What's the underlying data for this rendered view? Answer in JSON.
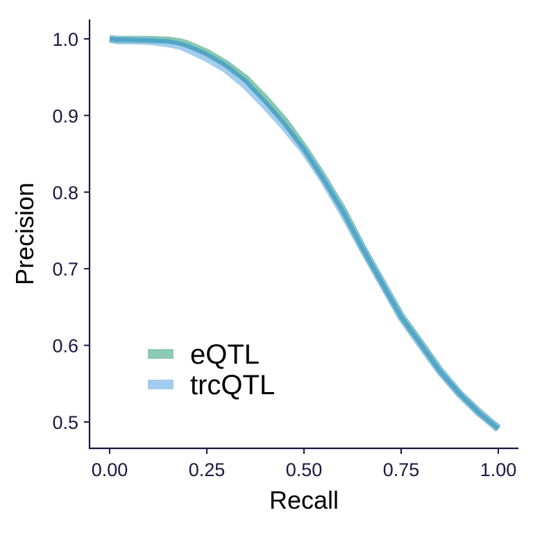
{
  "chart_data": {
    "type": "line",
    "xlabel": "Recall",
    "ylabel": "Precision",
    "xlim": [
      0,
      1
    ],
    "ylim": [
      0.467,
      1.027
    ],
    "xticks": [
      "0.00",
      "0.25",
      "0.50",
      "0.75",
      "1.00"
    ],
    "yticks": [
      "0.5",
      "0.6",
      "0.7",
      "0.8",
      "0.9",
      "1.0"
    ],
    "grid": false,
    "legend_position": "bottom-left",
    "series": [
      {
        "name": "eQTL",
        "color": "#66b899",
        "x": [
          0.0,
          0.02,
          0.05,
          0.1,
          0.15,
          0.18,
          0.2,
          0.25,
          0.3,
          0.35,
          0.4,
          0.45,
          0.5,
          0.55,
          0.6,
          0.65,
          0.7,
          0.75,
          0.8,
          0.85,
          0.9,
          0.95,
          1.0
        ],
        "y": [
          1.0,
          0.999,
          0.999,
          0.999,
          0.998,
          0.996,
          0.993,
          0.982,
          0.967,
          0.948,
          0.922,
          0.893,
          0.858,
          0.819,
          0.777,
          0.728,
          0.683,
          0.638,
          0.603,
          0.567,
          0.537,
          0.513,
          0.491
        ]
      },
      {
        "name": "trcQTL",
        "color": "#82bbe8",
        "x": [
          0.0,
          0.02,
          0.05,
          0.1,
          0.15,
          0.18,
          0.2,
          0.25,
          0.3,
          0.35,
          0.4,
          0.45,
          0.5,
          0.55,
          0.6,
          0.65,
          0.7,
          0.75,
          0.8,
          0.85,
          0.9,
          0.95,
          1.0
        ],
        "y": [
          1.0,
          0.998,
          0.998,
          0.997,
          0.994,
          0.991,
          0.987,
          0.975,
          0.96,
          0.939,
          0.913,
          0.885,
          0.854,
          0.816,
          0.773,
          0.727,
          0.682,
          0.637,
          0.601,
          0.566,
          0.537,
          0.512,
          0.492
        ]
      },
      {
        "name": "",
        "color": "#4fa3c4",
        "x": [
          0.0,
          0.02,
          0.05,
          0.1,
          0.15,
          0.18,
          0.2,
          0.25,
          0.3,
          0.35,
          0.4,
          0.45,
          0.5,
          0.55,
          0.6,
          0.65,
          0.7,
          0.75,
          0.8,
          0.85,
          0.9,
          0.95,
          1.0
        ],
        "y": [
          1.0,
          0.999,
          0.999,
          0.998,
          0.997,
          0.994,
          0.991,
          0.98,
          0.965,
          0.945,
          0.918,
          0.889,
          0.856,
          0.817,
          0.775,
          0.727,
          0.682,
          0.637,
          0.602,
          0.566,
          0.537,
          0.512,
          0.491
        ]
      }
    ],
    "legend": [
      {
        "label": "eQTL",
        "color": "#66b899"
      },
      {
        "label": "trcQTL",
        "color": "#82bbe8"
      }
    ]
  }
}
